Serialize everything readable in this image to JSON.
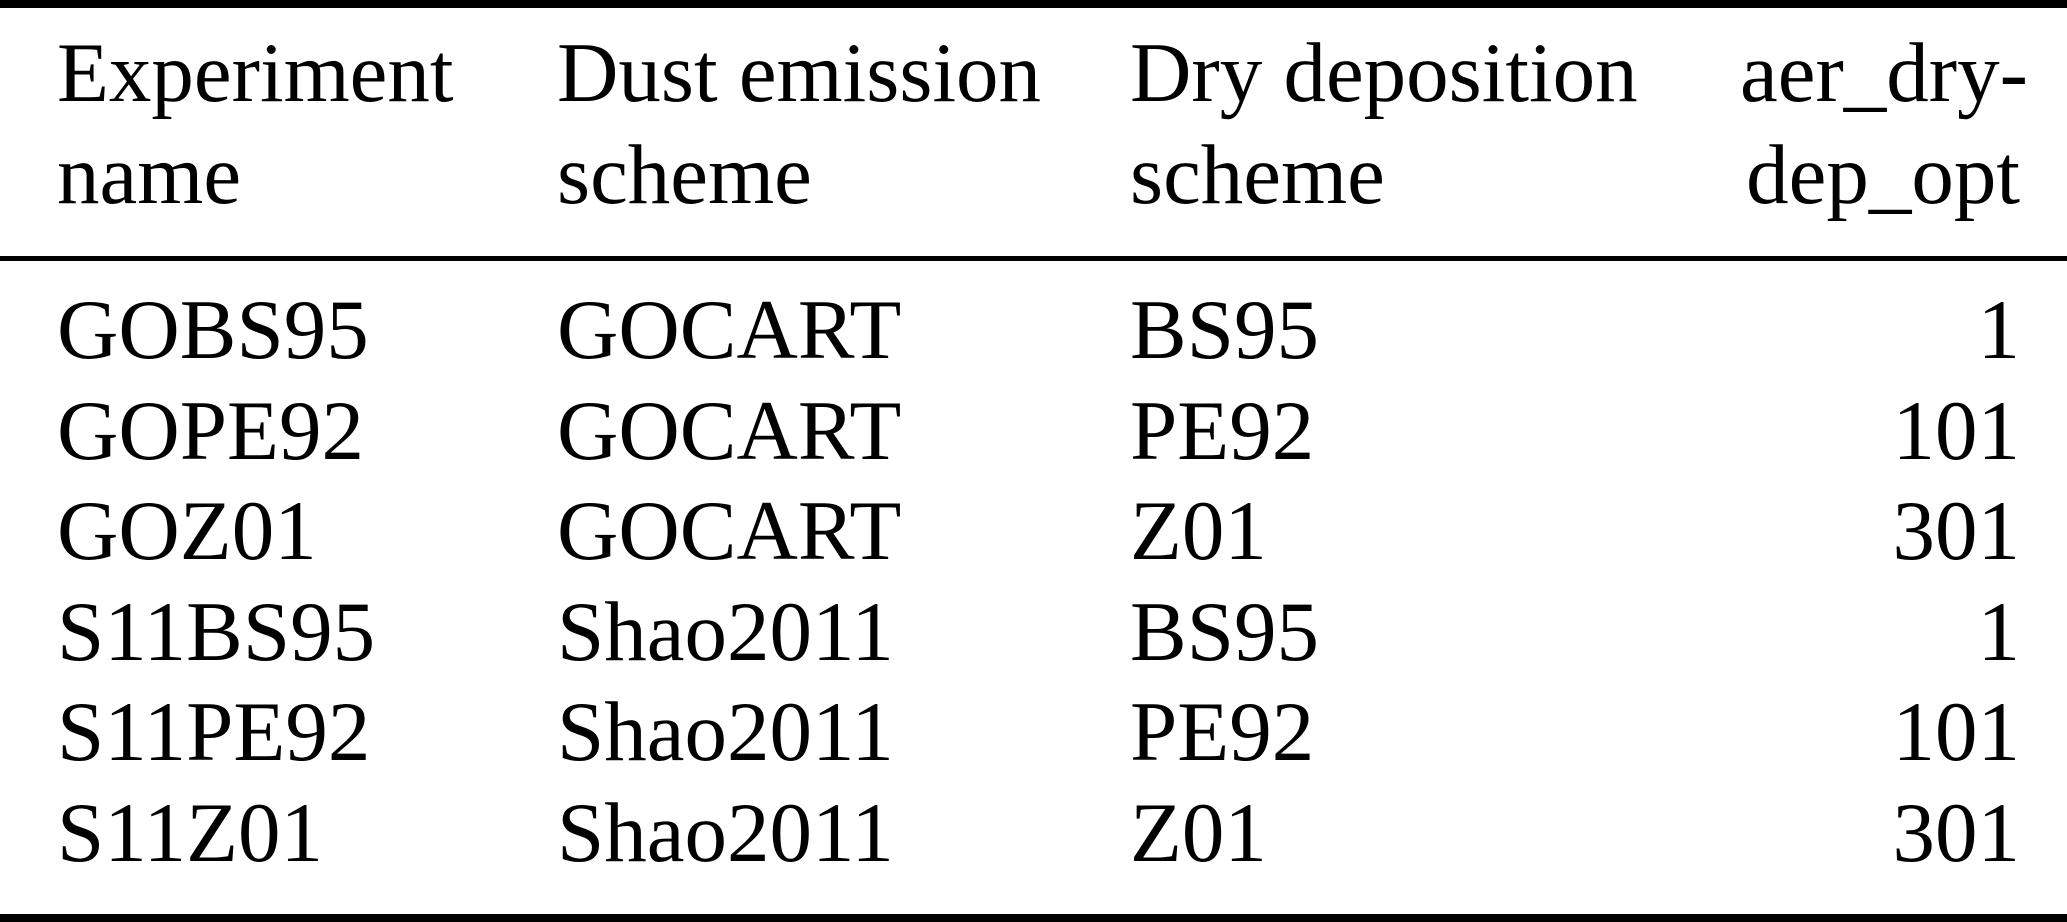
{
  "table": {
    "headers": [
      {
        "line1": "Experiment",
        "line2": "name"
      },
      {
        "line1": "Dust emission",
        "line2": "scheme"
      },
      {
        "line1": "Dry deposition",
        "line2": "scheme"
      },
      {
        "line1": "aer_dry-",
        "line2": "dep_opt"
      }
    ],
    "rows": [
      {
        "experiment_name": "GOBS95",
        "dust_emission_scheme": "GOCART",
        "dry_deposition_scheme": "BS95",
        "aer_dry_dep_opt": "1"
      },
      {
        "experiment_name": "GOPE92",
        "dust_emission_scheme": "GOCART",
        "dry_deposition_scheme": "PE92",
        "aer_dry_dep_opt": "101"
      },
      {
        "experiment_name": "GOZ01",
        "dust_emission_scheme": "GOCART",
        "dry_deposition_scheme": "Z01",
        "aer_dry_dep_opt": "301"
      },
      {
        "experiment_name": "S11BS95",
        "dust_emission_scheme": "Shao2011",
        "dry_deposition_scheme": "BS95",
        "aer_dry_dep_opt": "1"
      },
      {
        "experiment_name": "S11PE92",
        "dust_emission_scheme": "Shao2011",
        "dry_deposition_scheme": "PE92",
        "aer_dry_dep_opt": "101"
      },
      {
        "experiment_name": "S11Z01",
        "dust_emission_scheme": "Shao2011",
        "dry_deposition_scheme": "Z01",
        "aer_dry_dep_opt": "301"
      }
    ]
  },
  "colors": {
    "text": "#000000",
    "background": "#ffffff",
    "rule": "#000000"
  },
  "chart_data": {
    "type": "table",
    "columns": [
      "Experiment name",
      "Dust emission scheme",
      "Dry deposition scheme",
      "aer_dry-dep_opt"
    ],
    "rows": [
      [
        "GOBS95",
        "GOCART",
        "BS95",
        1
      ],
      [
        "GOPE92",
        "GOCART",
        "PE92",
        101
      ],
      [
        "GOZ01",
        "GOCART",
        "Z01",
        301
      ],
      [
        "S11BS95",
        "Shao2011",
        "BS95",
        1
      ],
      [
        "S11PE92",
        "Shao2011",
        "PE92",
        101
      ],
      [
        "S11Z01",
        "Shao2011",
        "Z01",
        301
      ]
    ]
  }
}
